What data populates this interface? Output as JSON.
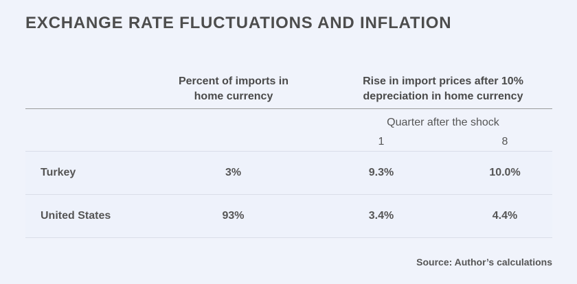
{
  "title": "EXCHANGE RATE FLUCTUATIONS AND INFLATION",
  "columns": {
    "pct_imports": "Percent of imports in home currency",
    "rise_prices": "Rise in import prices after 10% depreciation in home currency",
    "quarter_label": "Quarter after the shock",
    "quarter_1": "1",
    "quarter_8": "8"
  },
  "source": "Source: Author’s calculations",
  "chart_data": {
    "type": "table",
    "title": "EXCHANGE RATE FLUCTUATIONS AND INFLATION",
    "columns": [
      "",
      "Percent of imports in home currency",
      "Rise in import prices after 10% depreciation in home currency — Quarter 1",
      "Rise in import prices after 10% depreciation in home currency — Quarter 8"
    ],
    "rows": [
      {
        "country": "Turkey",
        "pct_imports": "3%",
        "q1": "9.3%",
        "q8": "10.0%"
      },
      {
        "country": "United States",
        "pct_imports": "93%",
        "q1": "3.4%",
        "q8": "4.4%"
      }
    ]
  }
}
